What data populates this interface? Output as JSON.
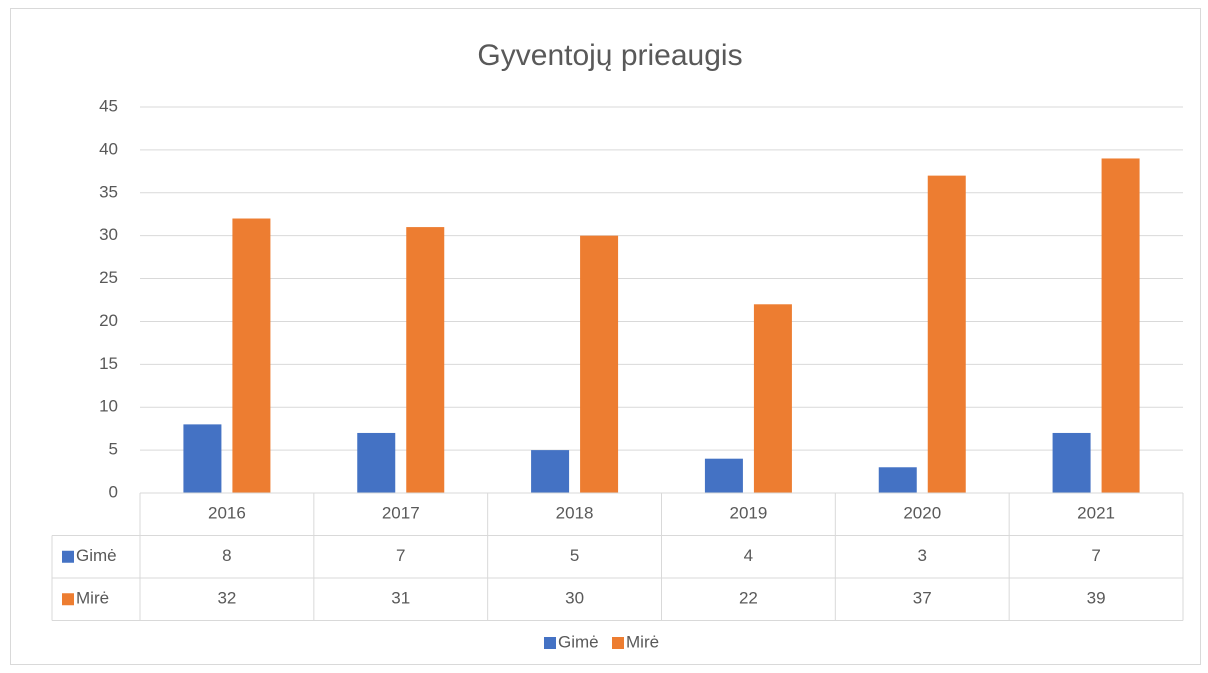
{
  "chart_data": {
    "type": "bar",
    "title": "Gyventojų prieaugis",
    "categories": [
      "2016",
      "2017",
      "2018",
      "2019",
      "2020",
      "2021"
    ],
    "series": [
      {
        "name": "Gimė",
        "color": "#4472c4",
        "values": [
          8,
          7,
          5,
          4,
          3,
          7
        ]
      },
      {
        "name": "Mirė",
        "color": "#ed7d31",
        "values": [
          32,
          31,
          30,
          22,
          37,
          39
        ]
      }
    ],
    "ylim": [
      0,
      45
    ],
    "yticks": [
      0,
      5,
      10,
      15,
      20,
      25,
      30,
      35,
      40,
      45
    ],
    "grid": true,
    "data_table": true,
    "legend": "bottom"
  }
}
